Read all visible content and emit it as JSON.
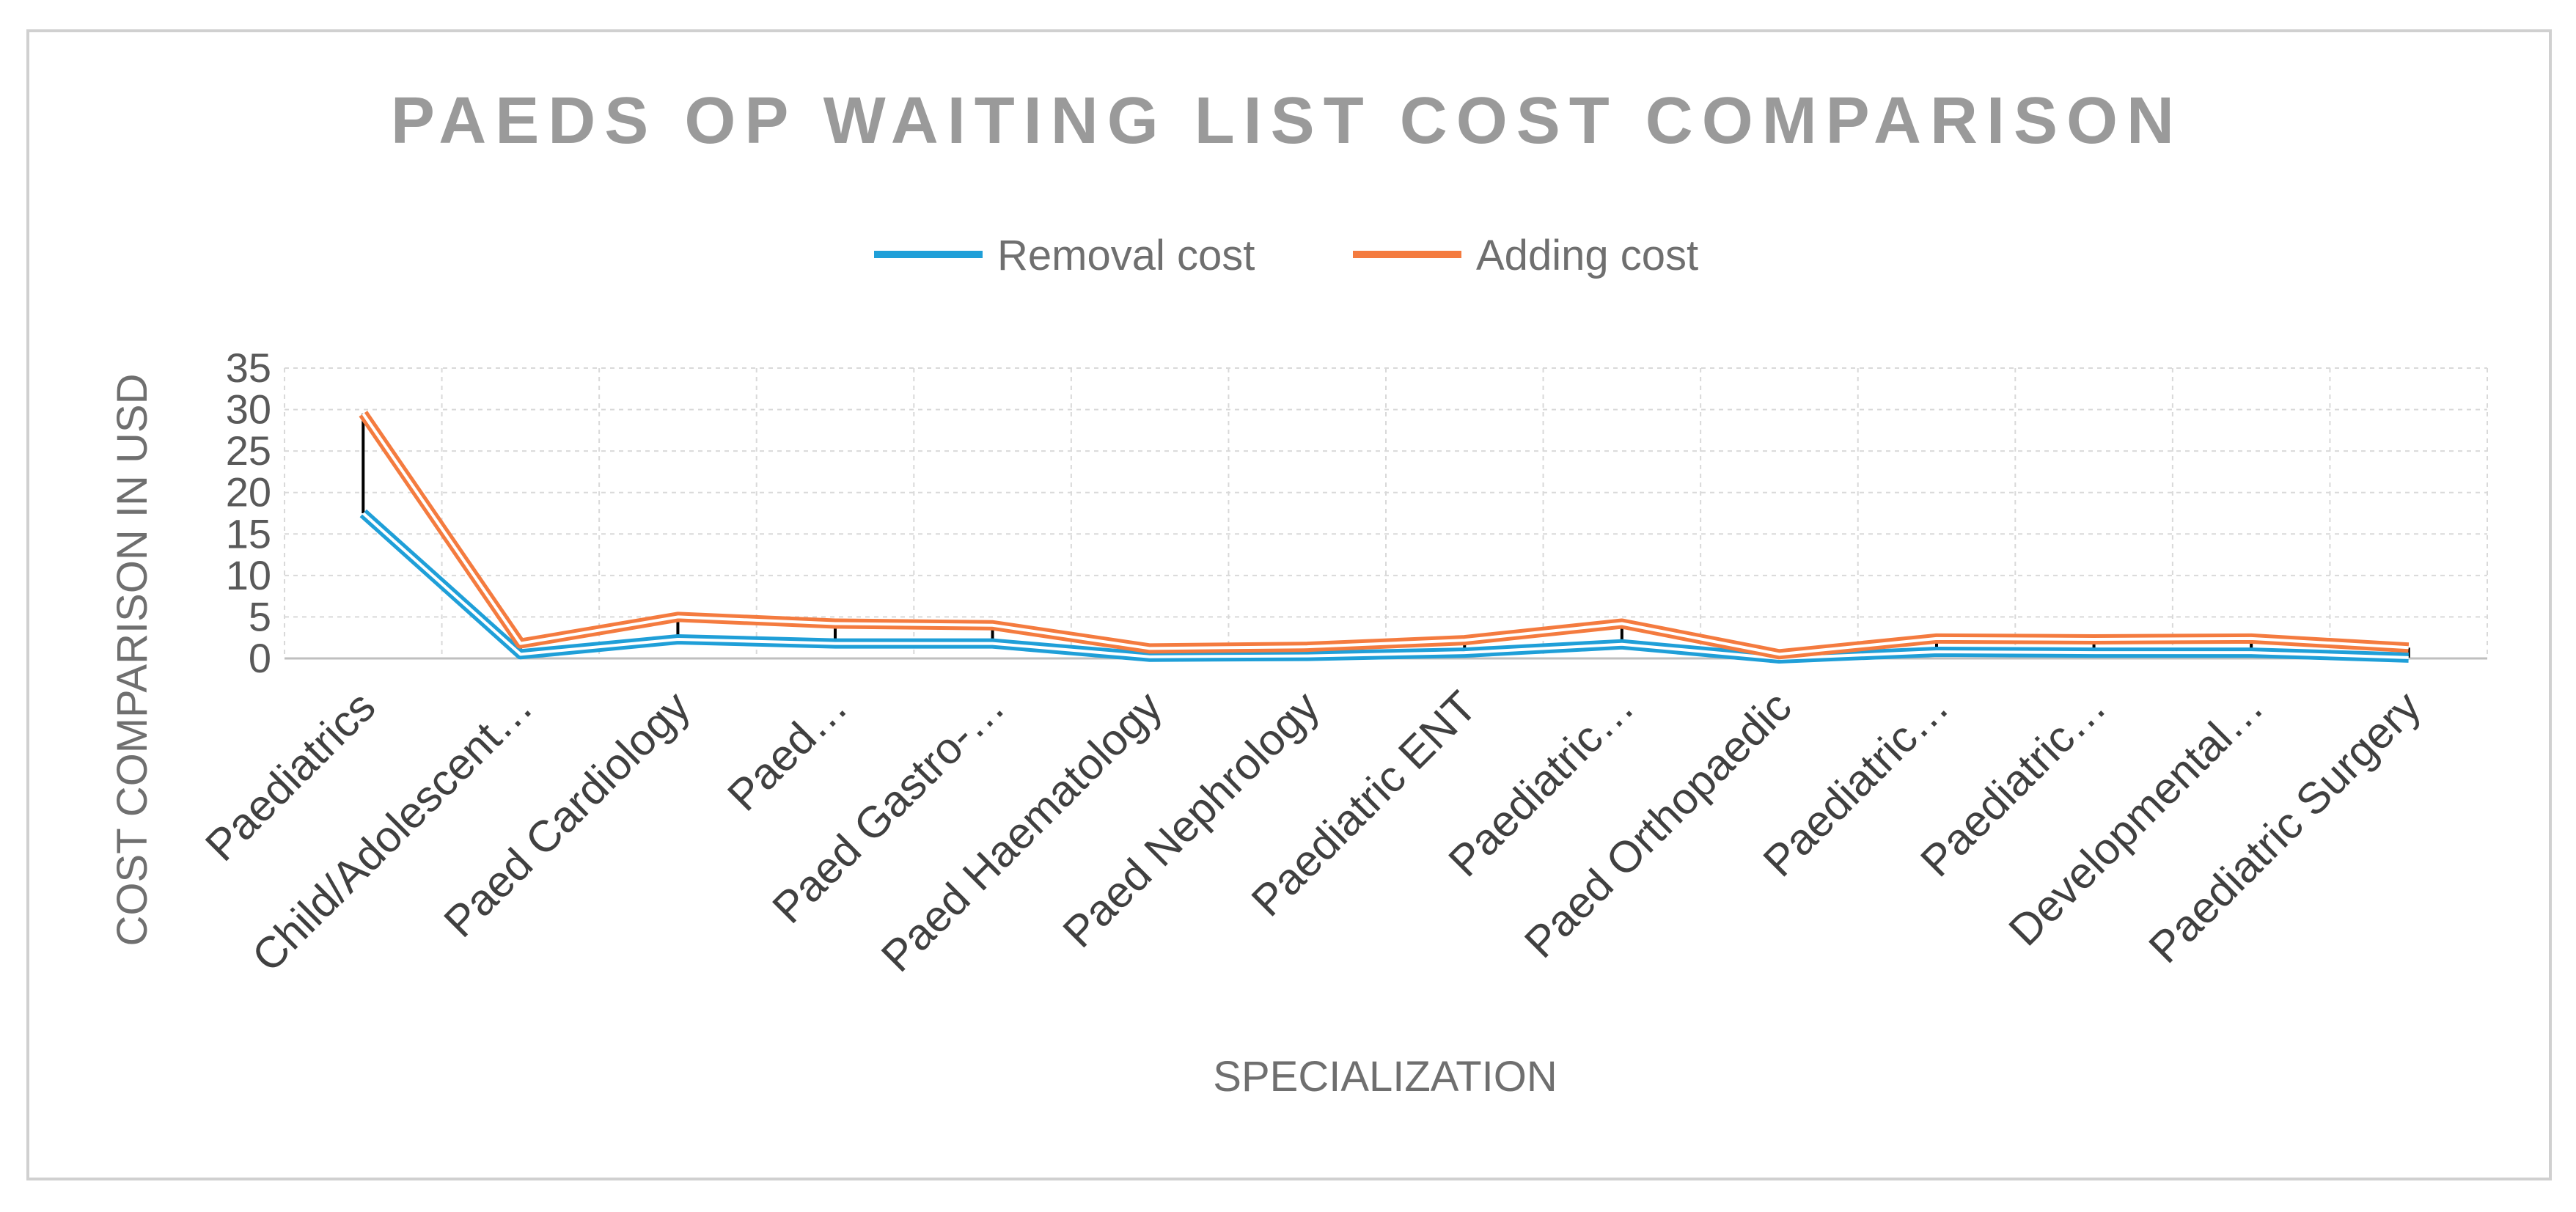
{
  "chart_data": {
    "type": "line",
    "title": "PAEDS OP WAITING LIST COST COMPARISON",
    "xlabel": "SPECIALIZATION",
    "ylabel": "COST COMPARISON IN USD",
    "ylim": [
      0,
      35
    ],
    "yticks": [
      0,
      5,
      10,
      15,
      20,
      25,
      30,
      35
    ],
    "grid": true,
    "legend_position": "top-center",
    "categories": [
      "Paediatrics",
      "Child/Adolescent…",
      "Paed Cardiology",
      "Paed…",
      "Paed Gastro-…",
      "Paed Haematology",
      "Paed Nephrology",
      "Paediatric ENT",
      "Paediatric…",
      "Paed Orthopaedic",
      "Paediatric…",
      "Paediatric…",
      "Developmental…",
      "Paediatric Surgery"
    ],
    "series": [
      {
        "name": "Removal cost",
        "color": "#1f9fd8",
        "values": [
          17.5,
          0.5,
          2.3,
          1.8,
          1.8,
          0.2,
          0.3,
          0.7,
          1.7,
          0.0,
          0.8,
          0.7,
          0.7,
          0.1
        ]
      },
      {
        "name": "Adding cost",
        "color": "#f47b3f",
        "values": [
          29.5,
          1.8,
          5.0,
          4.2,
          4.0,
          1.2,
          1.4,
          2.2,
          4.2,
          0.5,
          2.4,
          2.3,
          2.4,
          1.3
        ]
      }
    ]
  }
}
